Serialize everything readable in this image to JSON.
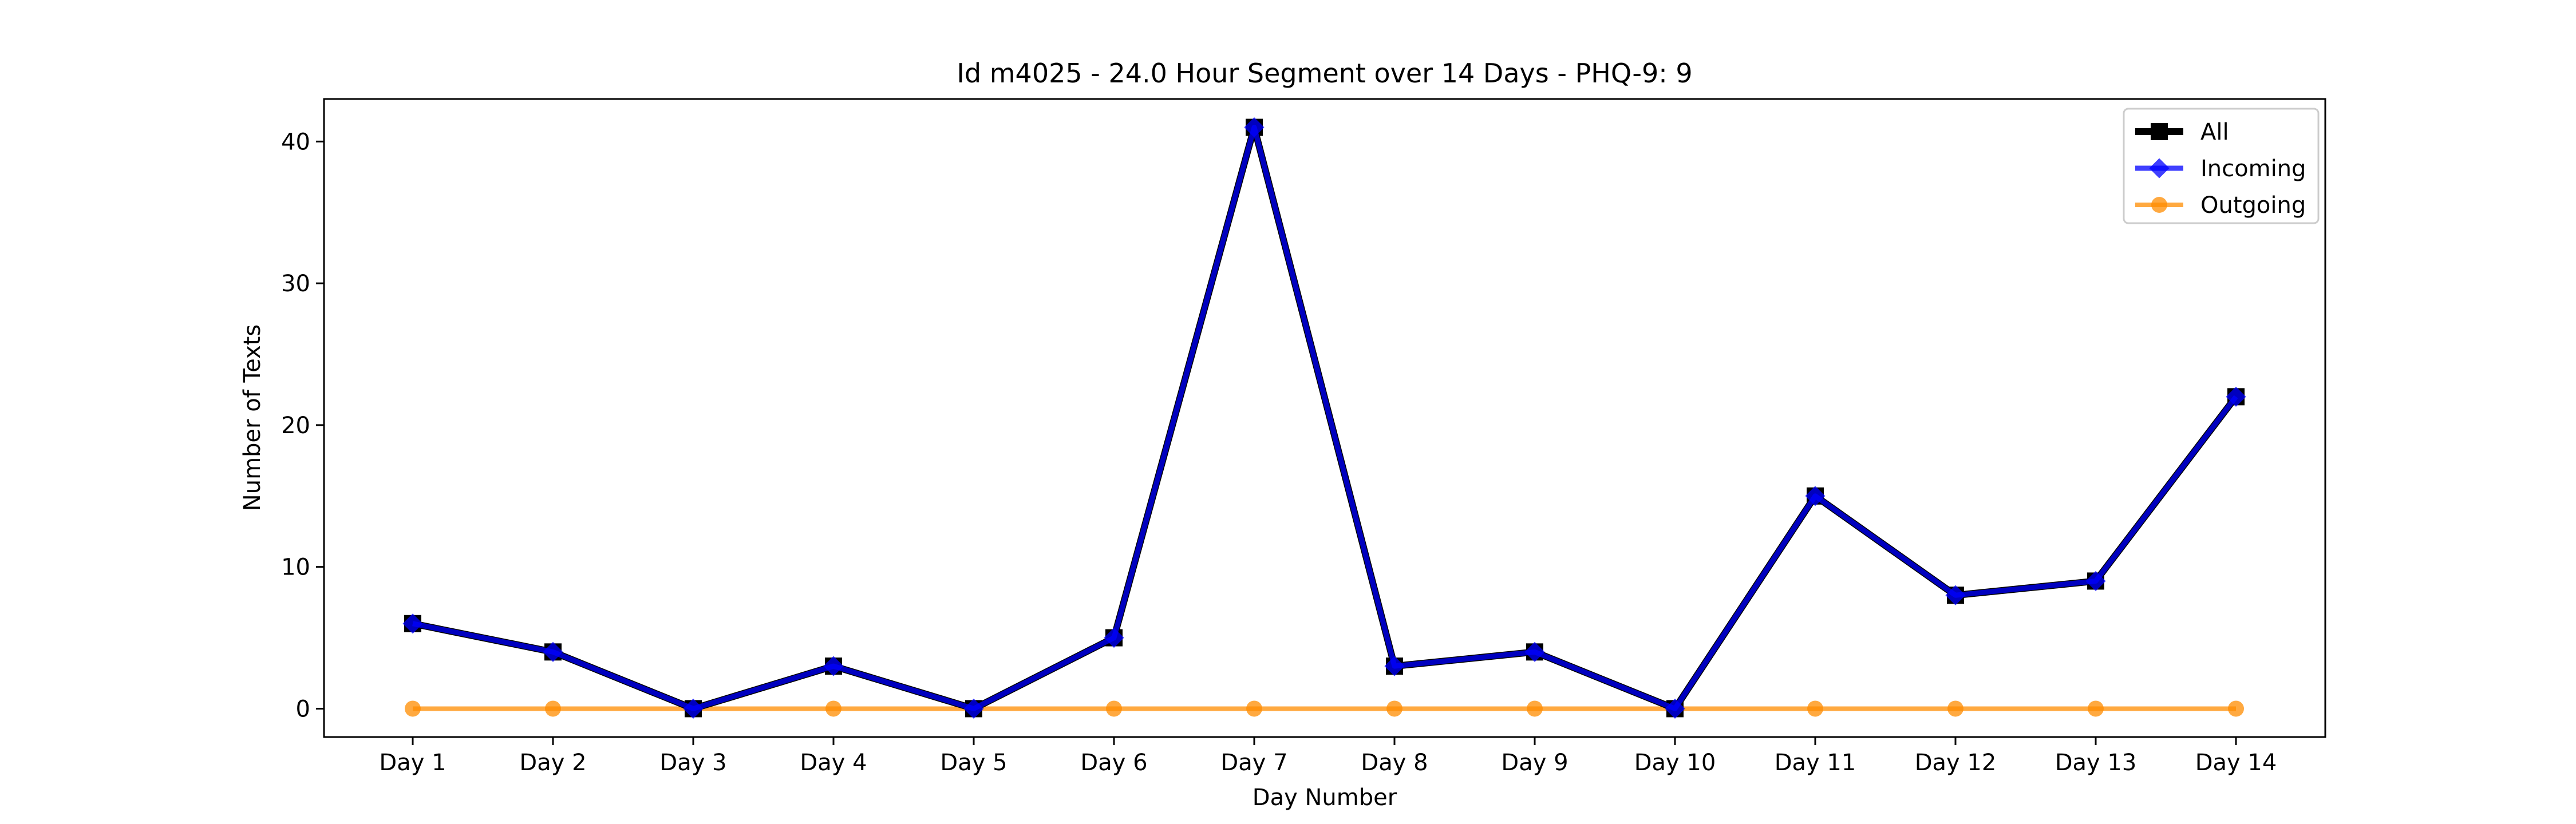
{
  "chart_data": {
    "type": "line",
    "title": "Id m4025 - 24.0 Hour Segment over 14 Days - PHQ-9: 9",
    "xlabel": "Day Number",
    "ylabel": "Number of Texts",
    "categories": [
      "Day 1",
      "Day 2",
      "Day 3",
      "Day 4",
      "Day 5",
      "Day 6",
      "Day 7",
      "Day 8",
      "Day 9",
      "Day 10",
      "Day 11",
      "Day 12",
      "Day 13",
      "Day 14"
    ],
    "ylim": [
      -2,
      43
    ],
    "yticks": [
      0,
      10,
      20,
      30,
      40
    ],
    "grid": false,
    "legend_position": "top-right",
    "series": [
      {
        "name": "All",
        "values": [
          6,
          4,
          0,
          3,
          0,
          5,
          41,
          3,
          4,
          0,
          15,
          8,
          9,
          22
        ],
        "color": "#000000",
        "marker": "square"
      },
      {
        "name": "Incoming",
        "values": [
          6,
          4,
          0,
          3,
          0,
          5,
          41,
          3,
          4,
          0,
          15,
          8,
          9,
          22
        ],
        "color": "#0000ff",
        "marker": "diamond"
      },
      {
        "name": "Outgoing",
        "values": [
          0,
          0,
          0,
          0,
          0,
          0,
          0,
          0,
          0,
          0,
          0,
          0,
          0,
          0
        ],
        "color": "#ff8c00",
        "marker": "circle"
      }
    ]
  }
}
